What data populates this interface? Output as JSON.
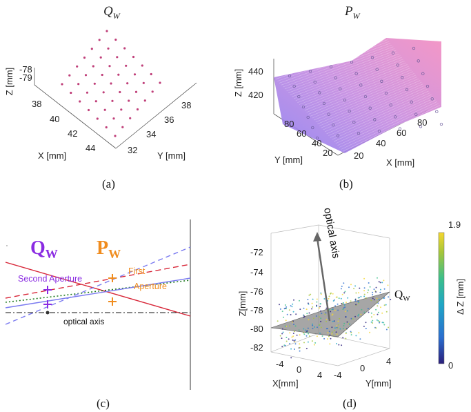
{
  "chart_data": [
    {
      "panel": "a",
      "type": "scatter",
      "title_main": "Q",
      "title_sub": "W",
      "z_ticks": [
        "-78",
        "-79"
      ],
      "x_ticks": [
        "38",
        "40",
        "42",
        "44"
      ],
      "y_ticks": [
        "32",
        "34",
        "36",
        "38"
      ],
      "xlabel": "X [mm]",
      "ylabel": "Y [mm]",
      "zlabel": "Z [mm]",
      "caption": "(a)",
      "grid_size": [
        7,
        7
      ],
      "color": "#c0407a"
    },
    {
      "panel": "b",
      "type": "surface",
      "title_main": "P",
      "title_sub": "W",
      "z_ticks": [
        "440",
        "420"
      ],
      "x_ticks": [
        "20",
        "40",
        "60",
        "80"
      ],
      "y_ticks": [
        "20",
        "40",
        "60",
        "80"
      ],
      "xlabel": "X [mm]",
      "ylabel": "Y [mm]",
      "zlabel": "Z [mm]",
      "caption": "(b)",
      "colors": {
        "high": "#f28cc0",
        "low": "#8c7ef0"
      }
    },
    {
      "panel": "c",
      "type": "diagram",
      "label_q_main": "Q",
      "label_q_sub": "W",
      "label_p_main": "P",
      "label_p_sub": "W",
      "second_aperture": "Second Aperture",
      "first_aperture_1": "First",
      "first_aperture_2": "Aperture",
      "optical_axis": "optical axis",
      "caption": "(c)",
      "colors": {
        "purple": "#8a2be2",
        "orange": "#f08c1e",
        "red": "#d8283a",
        "green": "#1e7a1e",
        "blue": "#7a7af0"
      }
    },
    {
      "panel": "d",
      "type": "scatter",
      "optical_axis": "optical axis",
      "plane_main": "Q",
      "plane_sub": "W",
      "z_ticks": [
        "-72",
        "-74",
        "-76",
        "-78",
        "-80",
        "-82"
      ],
      "x_ticks": [
        "-4",
        "0",
        "4"
      ],
      "y_ticks": [
        "-4",
        "0",
        "4"
      ],
      "xlabel": "X[mm]",
      "ylabel": "Y[mm]",
      "zlabel": "Z[mm]",
      "colorbar_label": "Δ Z [mm]",
      "colorbar_range": [
        "1.9",
        "0"
      ],
      "caption": "(d)",
      "colormap": [
        "#2a1e7a",
        "#2a6ecf",
        "#1fa6c6",
        "#3cbf8a",
        "#a6c63a",
        "#f5d72e"
      ]
    }
  ]
}
